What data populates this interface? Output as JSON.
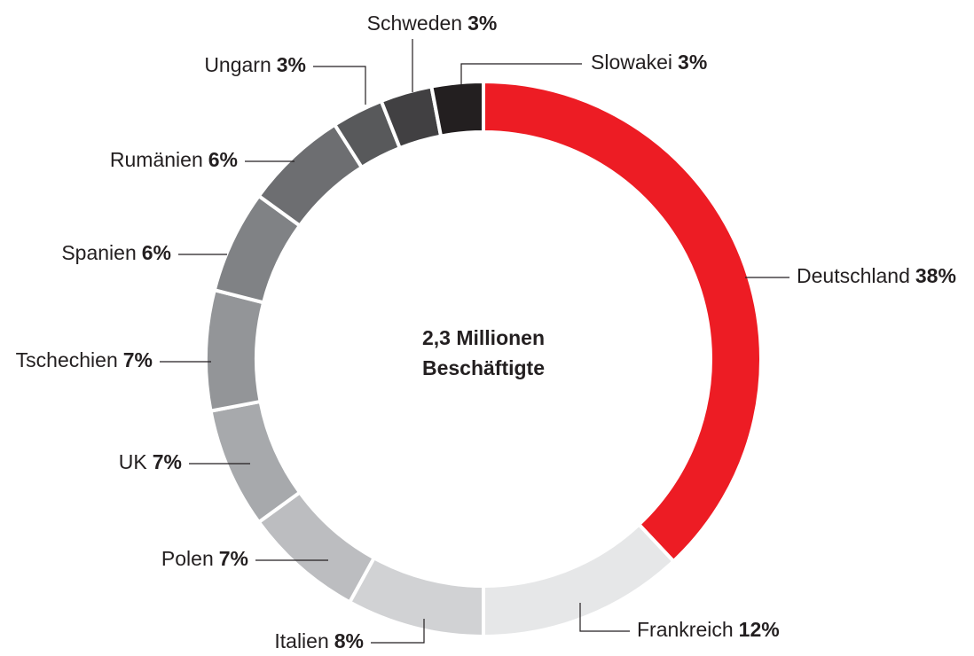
{
  "chart_data": {
    "type": "donut",
    "center_label": [
      "2,3 Millionen",
      "Beschäftigte"
    ],
    "categories": [
      "Deutschland",
      "Frankreich",
      "Italien",
      "Polen",
      "UK",
      "Tschechien",
      "Spanien",
      "Rumänien",
      "Ungarn",
      "Schweden",
      "Slowakei"
    ],
    "values": [
      38,
      12,
      8,
      7,
      7,
      7,
      6,
      6,
      3,
      3,
      3
    ],
    "value_labels": [
      "38%",
      "12%",
      "8%",
      "7%",
      "7%",
      "7%",
      "6%",
      "6%",
      "3%",
      "3%",
      "3%"
    ],
    "colors": [
      "#ed1c24",
      "#e6e7e8",
      "#d1d2d4",
      "#bcbdc0",
      "#a7a9ac",
      "#939598",
      "#808285",
      "#6d6e71",
      "#58595b",
      "#414042",
      "#231f20"
    ]
  }
}
